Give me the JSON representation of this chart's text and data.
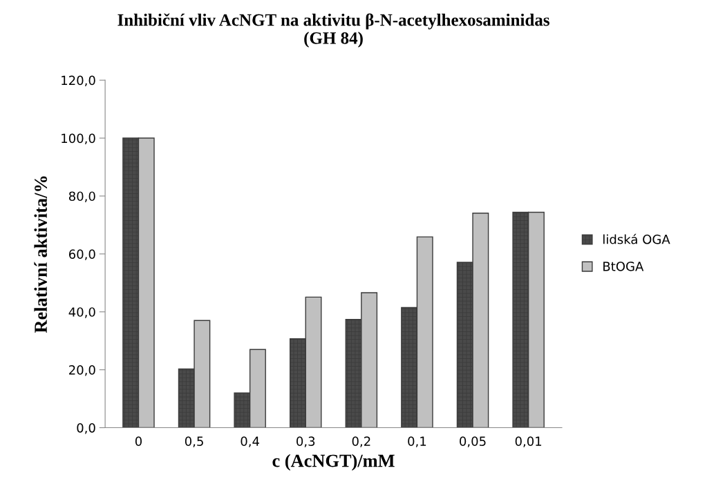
{
  "chart_data": {
    "type": "bar",
    "title": "Inhibiční vliv AcNGT na aktivitu β-N-acetylhexosaminidas\n(GH 84)",
    "xlabel": "c (AcNGT)/mM",
    "ylabel": "Relativní aktivita/%",
    "categories": [
      "0",
      "0,5",
      "0,4",
      "0,3",
      "0,2",
      "0,1",
      "0,05",
      "0,01"
    ],
    "series": [
      {
        "name": "lidská OGA",
        "color": "#4a4a4a",
        "values": [
          100,
          20.3,
          12.0,
          30.7,
          37.4,
          41.5,
          57.1,
          74.4
        ]
      },
      {
        "name": "BtOGA",
        "color": "#c0c0c0",
        "values": [
          100,
          37.0,
          27.0,
          45.1,
          46.6,
          65.9,
          74.1,
          74.4
        ]
      }
    ],
    "ylim": [
      0,
      120
    ],
    "yticks": [
      {
        "value": 0,
        "label": "0,0"
      },
      {
        "value": 20,
        "label": "20,0"
      },
      {
        "value": 40,
        "label": "40,0"
      },
      {
        "value": 60,
        "label": "60,0"
      },
      {
        "value": 80,
        "label": "80,0"
      },
      {
        "value": 100,
        "label": "100,0"
      },
      {
        "value": 120,
        "label": "120,0"
      }
    ],
    "grid": false,
    "legend": "right"
  }
}
